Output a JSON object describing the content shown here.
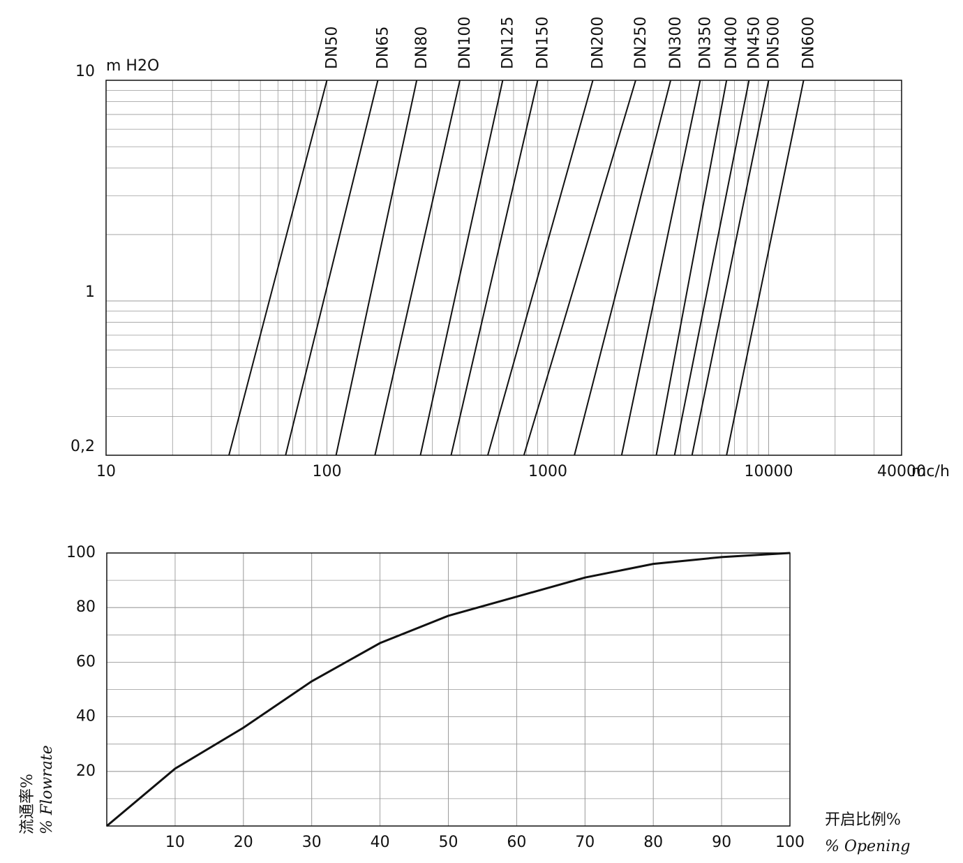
{
  "chart_data": [
    {
      "type": "line",
      "xlog": true,
      "ylog": true,
      "grid": true,
      "minor_grid": true,
      "color": "#111111",
      "y_unit": "m H2O",
      "x_unit": "mc/h",
      "xlim": [
        10,
        40000
      ],
      "xticks": [
        10,
        100,
        1000,
        10000,
        40000
      ],
      "ylim": [
        0.2,
        10
      ],
      "yticks": [
        {
          "value": 0.2,
          "label": "0,2"
        },
        1,
        10
      ],
      "series": [
        {
          "name": "DN50",
          "x": [
            36,
            100
          ],
          "values": [
            0.2,
            10
          ]
        },
        {
          "name": "DN65",
          "x": [
            65,
            170
          ],
          "values": [
            0.2,
            10
          ]
        },
        {
          "name": "DN80",
          "x": [
            110,
            255
          ],
          "values": [
            0.2,
            10
          ]
        },
        {
          "name": "DN100",
          "x": [
            165,
            400
          ],
          "values": [
            0.2,
            10
          ]
        },
        {
          "name": "DN125",
          "x": [
            265,
            625
          ],
          "values": [
            0.2,
            10
          ]
        },
        {
          "name": "DN150",
          "x": [
            365,
            900
          ],
          "values": [
            0.2,
            10
          ]
        },
        {
          "name": "DN200",
          "x": [
            535,
            1600
          ],
          "values": [
            0.2,
            10
          ]
        },
        {
          "name": "DN250",
          "x": [
            780,
            2500
          ],
          "values": [
            0.2,
            10
          ]
        },
        {
          "name": "DN300",
          "x": [
            1320,
            3600
          ],
          "values": [
            0.2,
            10
          ]
        },
        {
          "name": "DN350",
          "x": [
            2160,
            4900
          ],
          "values": [
            0.2,
            10
          ]
        },
        {
          "name": "DN400",
          "x": [
            3100,
            6450
          ],
          "values": [
            0.2,
            10
          ]
        },
        {
          "name": "DN450",
          "x": [
            3750,
            8150
          ],
          "values": [
            0.2,
            10
          ]
        },
        {
          "name": "DN500",
          "x": [
            4500,
            10000
          ],
          "values": [
            0.2,
            10
          ]
        },
        {
          "name": "DN600",
          "x": [
            6450,
            14400
          ],
          "values": [
            0.2,
            10
          ]
        }
      ]
    },
    {
      "type": "line",
      "xlog": false,
      "ylog": false,
      "grid": true,
      "minor_grid": true,
      "color": "#111111",
      "ylabel": "流通率%",
      "ylabel_sub": "% Flowrate",
      "xlabel": "开启比例%",
      "xlabel_sub": "% Opening",
      "xlim": [
        0,
        100
      ],
      "xticks": [
        10,
        20,
        30,
        40,
        50,
        60,
        70,
        80,
        90,
        100
      ],
      "ylim": [
        0,
        100
      ],
      "yticks": [
        20,
        40,
        60,
        80,
        100
      ],
      "series": [
        {
          "x": [
            0,
            10,
            20,
            30,
            40,
            50,
            60,
            70,
            80,
            90,
            100
          ],
          "values": [
            0,
            21,
            36,
            53,
            67,
            77,
            84,
            91,
            96,
            98.5,
            100
          ]
        }
      ]
    }
  ]
}
